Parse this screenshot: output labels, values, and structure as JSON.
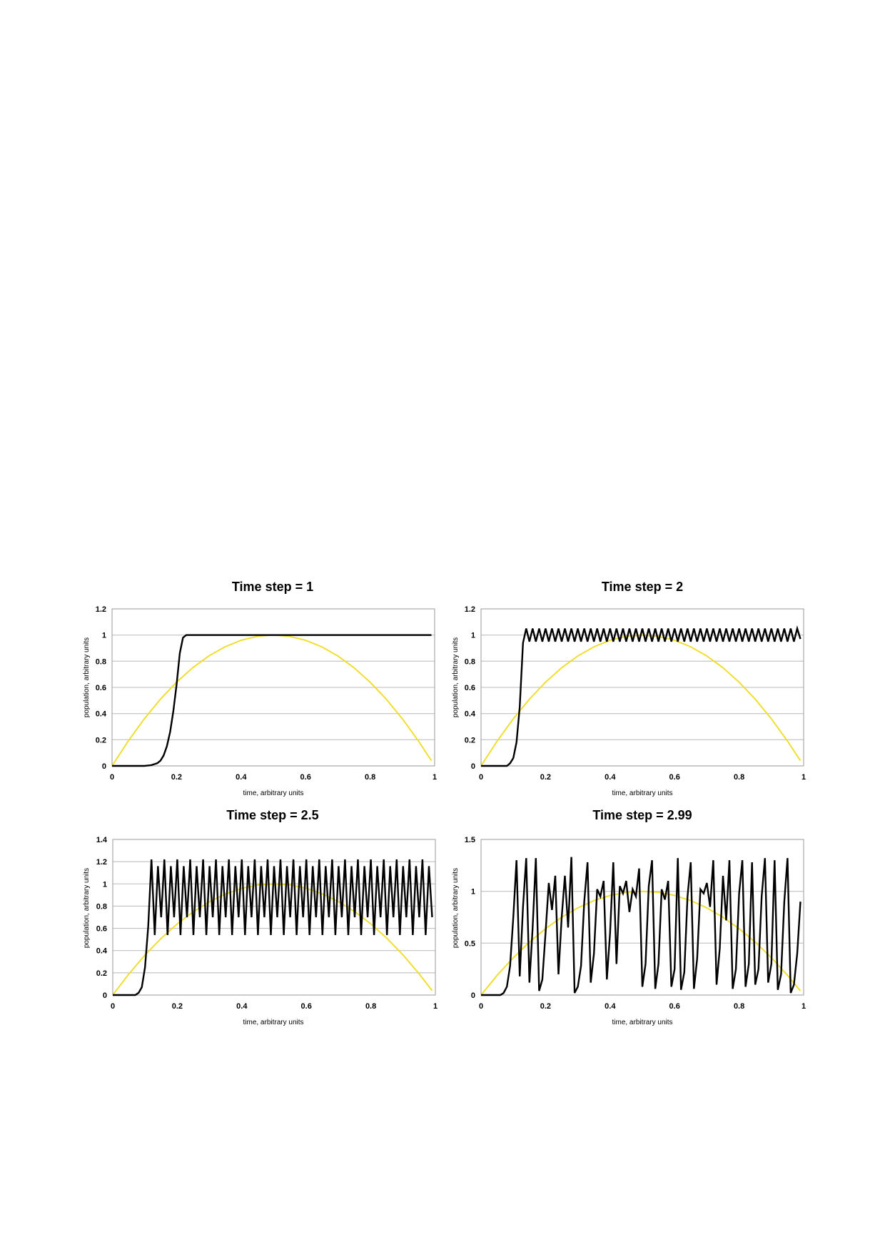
{
  "chart_data": [
    {
      "type": "line",
      "title": "Time step = 1",
      "xlabel": "time, arbitrary units",
      "ylabel": "population, arbitrary units",
      "xlim": [
        0,
        1
      ],
      "ylim": [
        0,
        1.2
      ],
      "xticks": [
        0,
        0.2,
        0.4,
        0.6,
        0.8,
        1
      ],
      "xtick_labels": [
        "0",
        "0.2",
        "0.4",
        "0.6",
        "0.8",
        "1"
      ],
      "yticks": [
        0,
        0.2,
        0.4,
        0.6,
        0.8,
        1,
        1.2
      ],
      "ytick_labels": [
        "0",
        "0.2",
        "0.4",
        "0.6",
        "0.8",
        "1",
        "1.2"
      ],
      "grid": "horizontal",
      "legend": "none",
      "series": [
        {
          "color": "#f0dc1e",
          "x": [
            0,
            0.05,
            0.1,
            0.15,
            0.2,
            0.25,
            0.3,
            0.35,
            0.4,
            0.45,
            0.5,
            0.55,
            0.6,
            0.65,
            0.7,
            0.75,
            0.8,
            0.85,
            0.9,
            0.95,
            0.99
          ],
          "y": [
            0,
            0.19,
            0.36,
            0.51,
            0.64,
            0.75,
            0.84,
            0.91,
            0.96,
            0.99,
            1,
            0.99,
            0.96,
            0.91,
            0.84,
            0.75,
            0.64,
            0.51,
            0.36,
            0.19,
            0.04
          ]
        },
        {
          "color": "#000000",
          "x": [
            0,
            0.1,
            0.12,
            0.14,
            0.15,
            0.16,
            0.17,
            0.18,
            0.19,
            0.2,
            0.21,
            0.22,
            0.23,
            0.3,
            0.5,
            0.7,
            0.9,
            0.99
          ],
          "y": [
            0,
            0,
            0.005,
            0.02,
            0.04,
            0.08,
            0.15,
            0.26,
            0.42,
            0.62,
            0.86,
            0.98,
            1,
            1,
            1,
            1,
            1,
            1
          ]
        }
      ]
    },
    {
      "type": "line",
      "title": "Time step = 2",
      "xlabel": "time, arbitrary units",
      "ylabel": "population, arbitrary units",
      "xlim": [
        0,
        1
      ],
      "ylim": [
        0,
        1.2
      ],
      "xticks": [
        0,
        0.2,
        0.4,
        0.6,
        0.8,
        1
      ],
      "xtick_labels": [
        "0",
        "0.2",
        "0.4",
        "0.6",
        "0.8",
        "1"
      ],
      "yticks": [
        0,
        0.2,
        0.4,
        0.6,
        0.8,
        1,
        1.2
      ],
      "ytick_labels": [
        "0",
        "0.2",
        "0.4",
        "0.6",
        "0.8",
        "1",
        "1.2"
      ],
      "grid": "horizontal",
      "legend": "none",
      "series": [
        {
          "color": "#f0dc1e",
          "x": [
            0,
            0.05,
            0.1,
            0.15,
            0.2,
            0.25,
            0.3,
            0.35,
            0.4,
            0.45,
            0.5,
            0.55,
            0.6,
            0.65,
            0.7,
            0.75,
            0.8,
            0.85,
            0.9,
            0.95,
            0.99
          ],
          "y": [
            0,
            0.19,
            0.36,
            0.51,
            0.64,
            0.75,
            0.84,
            0.91,
            0.96,
            0.99,
            1,
            0.99,
            0.96,
            0.91,
            0.84,
            0.75,
            0.64,
            0.51,
            0.36,
            0.19,
            0.04
          ]
        },
        {
          "color": "#000000",
          "x": [
            0,
            0.08,
            0.09,
            0.1,
            0.11,
            0.12,
            0.13,
            0.14,
            0.15,
            0.16,
            0.17,
            0.18,
            0.19,
            0.2,
            0.21,
            0.22,
            0.23,
            0.24,
            0.25,
            0.26,
            0.27,
            0.28,
            0.29,
            0.3,
            0.31,
            0.32,
            0.33,
            0.34,
            0.35,
            0.36,
            0.37,
            0.38,
            0.39,
            0.4,
            0.41,
            0.42,
            0.43,
            0.44,
            0.45,
            0.46,
            0.47,
            0.48,
            0.49,
            0.5,
            0.51,
            0.52,
            0.53,
            0.54,
            0.55,
            0.56,
            0.57,
            0.58,
            0.59,
            0.6,
            0.61,
            0.62,
            0.63,
            0.64,
            0.65,
            0.66,
            0.67,
            0.68,
            0.69,
            0.7,
            0.71,
            0.72,
            0.73,
            0.74,
            0.75,
            0.76,
            0.77,
            0.78,
            0.79,
            0.8,
            0.81,
            0.82,
            0.83,
            0.84,
            0.85,
            0.86,
            0.87,
            0.88,
            0.89,
            0.9,
            0.91,
            0.92,
            0.93,
            0.94,
            0.95,
            0.96,
            0.97,
            0.98,
            0.99
          ],
          "y": [
            0,
            0,
            0.02,
            0.06,
            0.18,
            0.45,
            0.94,
            1.05,
            0.95,
            1.05,
            0.95,
            1.05,
            0.95,
            1.05,
            0.95,
            1.05,
            0.95,
            1.05,
            0.95,
            1.05,
            0.95,
            1.05,
            0.95,
            1.05,
            0.95,
            1.05,
            0.95,
            1.05,
            0.95,
            1.05,
            0.95,
            1.05,
            0.95,
            1.05,
            0.95,
            1.05,
            0.95,
            1.05,
            0.95,
            1.05,
            0.95,
            1.05,
            0.95,
            1.05,
            0.95,
            1.05,
            0.95,
            1.05,
            0.95,
            1.05,
            0.95,
            1.05,
            0.95,
            1.05,
            0.95,
            1.05,
            0.95,
            1.05,
            0.95,
            1.05,
            0.95,
            1.05,
            0.95,
            1.05,
            0.95,
            1.05,
            0.95,
            1.05,
            0.95,
            1.05,
            0.95,
            1.05,
            0.95,
            1.05,
            0.95,
            1.05,
            0.95,
            1.05,
            0.95,
            1.05,
            0.95,
            1.05,
            0.95,
            1.05,
            0.95,
            1.05,
            0.95,
            1.05,
            0.95,
            1.05,
            0.95,
            1.05,
            0.97
          ]
        }
      ]
    },
    {
      "type": "line",
      "title": "Time step = 2.5",
      "xlabel": "time, arbitrary units",
      "ylabel": "population, arbitrary units",
      "xlim": [
        0,
        1
      ],
      "ylim": [
        0,
        1.4
      ],
      "xticks": [
        0,
        0.2,
        0.4,
        0.6,
        0.8,
        1
      ],
      "xtick_labels": [
        "0",
        "0.2",
        "0.4",
        "0.6",
        "0.8",
        "1"
      ],
      "yticks": [
        0,
        0.2,
        0.4,
        0.6,
        0.8,
        1,
        1.2,
        1.4
      ],
      "ytick_labels": [
        "0",
        "0.2",
        "0.4",
        "0.6",
        "0.8",
        "1",
        "1.2",
        "1.4"
      ],
      "grid": "horizontal",
      "legend": "none",
      "series": [
        {
          "color": "#f0dc1e",
          "x": [
            0,
            0.05,
            0.1,
            0.15,
            0.2,
            0.25,
            0.3,
            0.35,
            0.4,
            0.45,
            0.5,
            0.55,
            0.6,
            0.65,
            0.7,
            0.75,
            0.8,
            0.85,
            0.9,
            0.95,
            0.99
          ],
          "y": [
            0,
            0.19,
            0.36,
            0.51,
            0.64,
            0.75,
            0.84,
            0.91,
            0.96,
            0.99,
            1,
            0.99,
            0.96,
            0.91,
            0.84,
            0.75,
            0.64,
            0.51,
            0.36,
            0.19,
            0.04
          ]
        },
        {
          "color": "#000000",
          "x": [
            0,
            0.07,
            0.08,
            0.09,
            0.1,
            0.11,
            0.12,
            0.13,
            0.14,
            0.15,
            0.16,
            0.17,
            0.18,
            0.19,
            0.2,
            0.21,
            0.22,
            0.23,
            0.24,
            0.25,
            0.26,
            0.27,
            0.28,
            0.29,
            0.3,
            0.31,
            0.32,
            0.33,
            0.34,
            0.35,
            0.36,
            0.37,
            0.38,
            0.39,
            0.4,
            0.41,
            0.42,
            0.43,
            0.44,
            0.45,
            0.46,
            0.47,
            0.48,
            0.49,
            0.5,
            0.51,
            0.52,
            0.53,
            0.54,
            0.55,
            0.56,
            0.57,
            0.58,
            0.59,
            0.6,
            0.61,
            0.62,
            0.63,
            0.64,
            0.65,
            0.66,
            0.67,
            0.68,
            0.69,
            0.7,
            0.71,
            0.72,
            0.73,
            0.74,
            0.75,
            0.76,
            0.77,
            0.78,
            0.79,
            0.8,
            0.81,
            0.82,
            0.83,
            0.84,
            0.85,
            0.86,
            0.87,
            0.88,
            0.89,
            0.9,
            0.91,
            0.92,
            0.93,
            0.94,
            0.95,
            0.96,
            0.97,
            0.98,
            0.99
          ],
          "y": [
            0,
            0,
            0.02,
            0.07,
            0.25,
            0.62,
            1.22,
            0.54,
            1.16,
            0.7,
            1.22,
            0.54,
            1.16,
            0.7,
            1.22,
            0.54,
            1.16,
            0.7,
            1.22,
            0.54,
            1.16,
            0.7,
            1.22,
            0.54,
            1.16,
            0.7,
            1.22,
            0.54,
            1.16,
            0.7,
            1.22,
            0.54,
            1.16,
            0.7,
            1.22,
            0.54,
            1.16,
            0.7,
            1.22,
            0.54,
            1.16,
            0.7,
            1.22,
            0.54,
            1.16,
            0.7,
            1.22,
            0.54,
            1.16,
            0.7,
            1.22,
            0.54,
            1.16,
            0.7,
            1.22,
            0.54,
            1.16,
            0.7,
            1.22,
            0.54,
            1.16,
            0.7,
            1.22,
            0.54,
            1.16,
            0.7,
            1.22,
            0.54,
            1.16,
            0.7,
            1.22,
            0.54,
            1.16,
            0.7,
            1.22,
            0.54,
            1.16,
            0.7,
            1.22,
            0.54,
            1.16,
            0.7,
            1.22,
            0.54,
            1.16,
            0.7,
            1.22,
            0.54,
            1.16,
            0.7,
            1.22,
            0.54,
            1.16,
            0.7
          ]
        }
      ]
    },
    {
      "type": "line",
      "title": "Time step = 2.99",
      "xlabel": "time, arbitrary units",
      "ylabel": "population, arbitrary units",
      "xlim": [
        0,
        1
      ],
      "ylim": [
        0,
        1.5
      ],
      "xticks": [
        0,
        0.2,
        0.4,
        0.6,
        0.8,
        1
      ],
      "xtick_labels": [
        "0",
        "0.2",
        "0.4",
        "0.6",
        "0.8",
        "1"
      ],
      "yticks": [
        0,
        0.5,
        1,
        1.5
      ],
      "ytick_labels": [
        "0",
        "0.5",
        "1",
        "1.5"
      ],
      "grid": "horizontal",
      "legend": "none",
      "series": [
        {
          "color": "#f0dc1e",
          "x": [
            0,
            0.05,
            0.1,
            0.15,
            0.2,
            0.25,
            0.3,
            0.35,
            0.4,
            0.45,
            0.5,
            0.55,
            0.6,
            0.65,
            0.7,
            0.75,
            0.8,
            0.85,
            0.9,
            0.95,
            0.99
          ],
          "y": [
            0,
            0.19,
            0.36,
            0.51,
            0.64,
            0.75,
            0.84,
            0.91,
            0.96,
            0.99,
            1,
            0.99,
            0.96,
            0.91,
            0.84,
            0.75,
            0.64,
            0.51,
            0.36,
            0.19,
            0.04
          ]
        },
        {
          "color": "#000000",
          "x": [
            0,
            0.06,
            0.07,
            0.08,
            0.09,
            0.1,
            0.11,
            0.12,
            0.13,
            0.14,
            0.15,
            0.16,
            0.17,
            0.18,
            0.19,
            0.2,
            0.21,
            0.22,
            0.23,
            0.24,
            0.25,
            0.26,
            0.27,
            0.28,
            0.29,
            0.3,
            0.31,
            0.32,
            0.33,
            0.34,
            0.35,
            0.36,
            0.37,
            0.38,
            0.39,
            0.4,
            0.41,
            0.42,
            0.43,
            0.44,
            0.45,
            0.46,
            0.47,
            0.48,
            0.49,
            0.5,
            0.51,
            0.52,
            0.53,
            0.54,
            0.55,
            0.56,
            0.57,
            0.58,
            0.59,
            0.6,
            0.61,
            0.62,
            0.63,
            0.64,
            0.65,
            0.66,
            0.67,
            0.68,
            0.69,
            0.7,
            0.71,
            0.72,
            0.73,
            0.74,
            0.75,
            0.76,
            0.77,
            0.78,
            0.79,
            0.8,
            0.81,
            0.82,
            0.83,
            0.84,
            0.85,
            0.86,
            0.87,
            0.88,
            0.89,
            0.9,
            0.91,
            0.92,
            0.93,
            0.94,
            0.95,
            0.96,
            0.97,
            0.98,
            0.99
          ],
          "y": [
            0,
            0,
            0.02,
            0.08,
            0.28,
            0.75,
            1.3,
            0.18,
            0.85,
            1.32,
            0.12,
            0.65,
            1.32,
            0.04,
            0.15,
            0.6,
            1.08,
            0.82,
            1.15,
            0.2,
            0.75,
            1.15,
            0.65,
            1.33,
            0.02,
            0.08,
            0.28,
            0.9,
            1.28,
            0.12,
            0.4,
            1.02,
            0.95,
            1.1,
            0.15,
            0.6,
            1.28,
            0.3,
            1.05,
            0.98,
            1.1,
            0.8,
            1.02,
            0.95,
            1.22,
            0.08,
            0.3,
            1.05,
            1.3,
            0.06,
            0.3,
            1.02,
            0.92,
            1.1,
            0.08,
            0.25,
            1.32,
            0.05,
            0.22,
            0.95,
            1.28,
            0.06,
            0.35,
            1.02,
            0.98,
            1.08,
            0.85,
            1.3,
            0.1,
            0.45,
            1.15,
            0.72,
            1.3,
            0.06,
            0.25,
            0.98,
            1.3,
            0.08,
            0.3,
            1.28,
            0.1,
            0.25,
            0.95,
            1.32,
            0.12,
            0.3,
            1.3,
            0.05,
            0.2,
            0.9,
            1.32,
            0.02,
            0.1,
            0.4,
            0.9
          ]
        }
      ]
    }
  ]
}
